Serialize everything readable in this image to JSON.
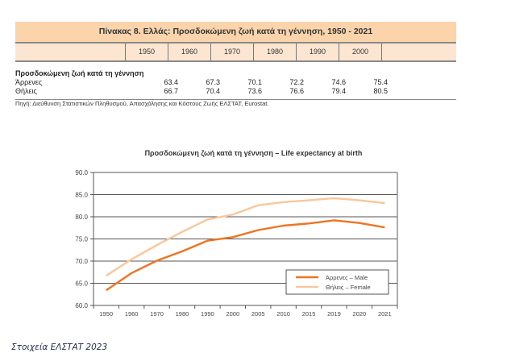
{
  "table": {
    "title": "Πίνακας 8. Ελλάς: Προσδοκώμενη ζωή κατά τη γέννηση, 1950 - 2021",
    "years": [
      "1950",
      "1960",
      "1970",
      "1980",
      "1990",
      "2000"
    ],
    "section_label": "Προσδοκώμενη ζωή κατά τη γέννηση",
    "rows": [
      {
        "label": "Άρρενες",
        "values": [
          "63.4",
          "67.3",
          "70.1",
          "72.2",
          "74.6",
          "75.4"
        ]
      },
      {
        "label": "Θήλεις",
        "values": [
          "66.7",
          "70.4",
          "73.6",
          "76.6",
          "79.4",
          "80.5"
        ]
      }
    ],
    "source": "Πηγή: Διεύθυνση Στατιστικών Πληθυσμού, Απασχόλησης και Κόστους Ζωής ΕΛΣΤΑΤ, Eurostat."
  },
  "chart_data": {
    "type": "line",
    "title": "Προσδοκώμενη ζωή κατά τη γέννηση – Life expectancy at birth",
    "xlabel": "",
    "ylabel": "",
    "categories": [
      "1950",
      "1960",
      "1970",
      "1980",
      "1990",
      "2000",
      "2005",
      "2010",
      "2015",
      "2019",
      "2020",
      "2021"
    ],
    "ylim": [
      60,
      90
    ],
    "yticks": [
      "60.0",
      "65.0",
      "70.0",
      "75.0",
      "80.0",
      "85.0",
      "90.0"
    ],
    "grid": true,
    "legend_position": "bottom-right",
    "series": [
      {
        "name": "Άρρενες – Male",
        "color": "#f07322",
        "values": [
          63.4,
          67.3,
          70.1,
          72.2,
          74.6,
          75.4,
          77.0,
          78.0,
          78.5,
          79.2,
          78.6,
          77.6
        ]
      },
      {
        "name": "Θήλεις – Female",
        "color": "#f9c79c",
        "values": [
          66.7,
          70.4,
          73.6,
          76.6,
          79.4,
          80.5,
          82.6,
          83.3,
          83.7,
          84.2,
          83.7,
          83.1
        ]
      }
    ]
  },
  "footer": "Στοιχεία ΕΛΣΤΑΤ 2023"
}
